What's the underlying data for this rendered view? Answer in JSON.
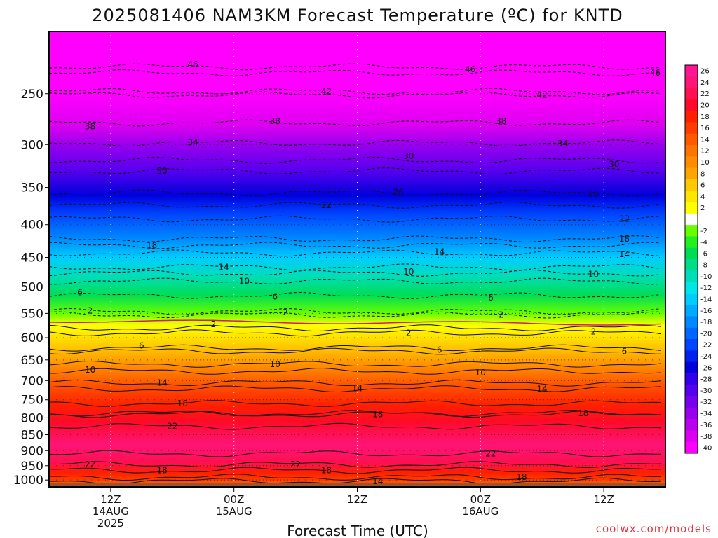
{
  "title": "2025081406 NAM3KM Forecast Temperature (ºC) for KNTD",
  "xlabel": "Forecast Time (UTC)",
  "credit": "coolwx.com/models",
  "chart_data": {
    "type": "heatmap",
    "title": "2025081406 NAM3KM Forecast Temperature (ºC) for KNTD",
    "xlabel": "Forecast Time (UTC)",
    "ylabel": "",
    "x_ticks": [
      {
        "hour": 6,
        "line1": "12Z",
        "line2": "14AUG",
        "line3": "2025"
      },
      {
        "hour": 18,
        "line1": "00Z",
        "line2": "15AUG",
        "line3": ""
      },
      {
        "hour": 30,
        "line1": "12Z",
        "line2": "",
        "line3": ""
      },
      {
        "hour": 42,
        "line1": "00Z",
        "line2": "16AUG",
        "line3": ""
      },
      {
        "hour": 54,
        "line1": "12Z",
        "line2": "",
        "line3": ""
      }
    ],
    "xlim": [
      0,
      60
    ],
    "y_ticks": [
      250,
      300,
      350,
      400,
      450,
      500,
      550,
      600,
      650,
      700,
      750,
      800,
      850,
      900,
      950,
      1000
    ],
    "ylim": [
      200,
      1025
    ],
    "y_log_scale": true,
    "surface_pressure": 1010,
    "temperature_profile": [
      {
        "p": 200,
        "t": -50
      },
      {
        "p": 230,
        "t": -46
      },
      {
        "p": 250,
        "t": -42
      },
      {
        "p": 280,
        "t": -38
      },
      {
        "p": 300,
        "t": -34
      },
      {
        "p": 330,
        "t": -30
      },
      {
        "p": 360,
        "t": -26
      },
      {
        "p": 385,
        "t": -22
      },
      {
        "p": 420,
        "t": -18
      },
      {
        "p": 450,
        "t": -14
      },
      {
        "p": 480,
        "t": -10
      },
      {
        "p": 515,
        "t": -6
      },
      {
        "p": 550,
        "t": -2
      },
      {
        "p": 575,
        "t": 2
      },
      {
        "p": 620,
        "t": 6
      },
      {
        "p": 665,
        "t": 10
      },
      {
        "p": 705,
        "t": 14
      },
      {
        "p": 765,
        "t": 18
      },
      {
        "p": 810,
        "t": 21
      },
      {
        "p": 880,
        "t": 24
      },
      {
        "p": 940,
        "t": 22
      },
      {
        "p": 975,
        "t": 18
      },
      {
        "p": 1000,
        "t": 16
      },
      {
        "p": 1010,
        "t": 14
      }
    ],
    "contour_labels": [
      {
        "value": "46",
        "hour": 14,
        "p": 225
      },
      {
        "value": "46",
        "hour": 41,
        "p": 229
      },
      {
        "value": "46",
        "hour": 59,
        "p": 232
      },
      {
        "value": "42",
        "hour": 27,
        "p": 248
      },
      {
        "value": "42",
        "hour": 48,
        "p": 251
      },
      {
        "value": "38",
        "hour": 4,
        "p": 281
      },
      {
        "value": "38",
        "hour": 22,
        "p": 276
      },
      {
        "value": "38",
        "hour": 44,
        "p": 276
      },
      {
        "value": "34",
        "hour": 14,
        "p": 298
      },
      {
        "value": "34",
        "hour": 50,
        "p": 299
      },
      {
        "value": "30",
        "hour": 11,
        "p": 330
      },
      {
        "value": "30",
        "hour": 35,
        "p": 313
      },
      {
        "value": "30",
        "hour": 55,
        "p": 322
      },
      {
        "value": "26",
        "hour": 34,
        "p": 356
      },
      {
        "value": "26",
        "hour": 53,
        "p": 358
      },
      {
        "value": "22",
        "hour": 27,
        "p": 373
      },
      {
        "value": "22",
        "hour": 56,
        "p": 392
      },
      {
        "value": "18",
        "hour": 10,
        "p": 431
      },
      {
        "value": "18",
        "hour": 56,
        "p": 421
      },
      {
        "value": "14",
        "hour": 17,
        "p": 466
      },
      {
        "value": "14",
        "hour": 38,
        "p": 441
      },
      {
        "value": "14",
        "hour": 56,
        "p": 445
      },
      {
        "value": "10",
        "hour": 19,
        "p": 490
      },
      {
        "value": "10",
        "hour": 35,
        "p": 474
      },
      {
        "value": "10",
        "hour": 53,
        "p": 478
      },
      {
        "value": "6",
        "hour": 3,
        "p": 510
      },
      {
        "value": "6",
        "hour": 22,
        "p": 518
      },
      {
        "value": "6",
        "hour": 43,
        "p": 520
      },
      {
        "value": "2",
        "hour": 4,
        "p": 545
      },
      {
        "value": "2",
        "hour": 23,
        "p": 548
      },
      {
        "value": "2",
        "hour": 44,
        "p": 553
      },
      {
        "value": "2",
        "hour": 16,
        "p": 572
      },
      {
        "value": "2",
        "hour": 35,
        "p": 590
      },
      {
        "value": "2",
        "hour": 53,
        "p": 587
      },
      {
        "value": "6",
        "hour": 9,
        "p": 618
      },
      {
        "value": "6",
        "hour": 38,
        "p": 627
      },
      {
        "value": "6",
        "hour": 56,
        "p": 630
      },
      {
        "value": "10",
        "hour": 4,
        "p": 674
      },
      {
        "value": "10",
        "hour": 22,
        "p": 660
      },
      {
        "value": "10",
        "hour": 42,
        "p": 680
      },
      {
        "value": "14",
        "hour": 11,
        "p": 706
      },
      {
        "value": "14",
        "hour": 30,
        "p": 720
      },
      {
        "value": "14",
        "hour": 48,
        "p": 722
      },
      {
        "value": "18",
        "hour": 13,
        "p": 760
      },
      {
        "value": "18",
        "hour": 32,
        "p": 790
      },
      {
        "value": "18",
        "hour": 52,
        "p": 787
      },
      {
        "value": "22",
        "hour": 12,
        "p": 825
      },
      {
        "value": "22",
        "hour": 43,
        "p": 910
      },
      {
        "value": "22",
        "hour": 4,
        "p": 946
      },
      {
        "value": "22",
        "hour": 24,
        "p": 946
      },
      {
        "value": "18",
        "hour": 11,
        "p": 966
      },
      {
        "value": "18",
        "hour": 27,
        "p": 966
      },
      {
        "value": "18",
        "hour": 46,
        "p": 990
      },
      {
        "value": "14",
        "hour": 32,
        "p": 1004
      }
    ],
    "colorbar": [
      {
        "label": "26",
        "color": "#ff1493"
      },
      {
        "label": "24",
        "color": "#ff1478"
      },
      {
        "label": "22",
        "color": "#ff1050"
      },
      {
        "label": "20",
        "color": "#ff0a28"
      },
      {
        "label": "18",
        "color": "#ff2000"
      },
      {
        "label": "16",
        "color": "#ff3c00"
      },
      {
        "label": "14",
        "color": "#ff5a00"
      },
      {
        "label": "12",
        "color": "#ff7300"
      },
      {
        "label": "10",
        "color": "#ff8c00"
      },
      {
        "label": "8",
        "color": "#ffa500"
      },
      {
        "label": "6",
        "color": "#ffc800"
      },
      {
        "label": "4",
        "color": "#ffe600"
      },
      {
        "label": "2",
        "color": "#ffff00"
      },
      {
        "label": "",
        "color": "#ffffff"
      },
      {
        "label": "-2",
        "color": "#66ff00"
      },
      {
        "label": "-4",
        "color": "#22ee22"
      },
      {
        "label": "-6",
        "color": "#00dd55"
      },
      {
        "label": "-8",
        "color": "#00dd88"
      },
      {
        "label": "-10",
        "color": "#00ddbb"
      },
      {
        "label": "-12",
        "color": "#00e5e5"
      },
      {
        "label": "-14",
        "color": "#00ccff"
      },
      {
        "label": "-16",
        "color": "#00aaff"
      },
      {
        "label": "-18",
        "color": "#0088ff"
      },
      {
        "label": "-20",
        "color": "#0066ff"
      },
      {
        "label": "-22",
        "color": "#0044ff"
      },
      {
        "label": "-24",
        "color": "#0022ee"
      },
      {
        "label": "-26",
        "color": "#0000dd"
      },
      {
        "label": "-28",
        "color": "#3300ee"
      },
      {
        "label": "-30",
        "color": "#5500ee"
      },
      {
        "label": "-32",
        "color": "#7700ee"
      },
      {
        "label": "-34",
        "color": "#9900ee"
      },
      {
        "label": "-36",
        "color": "#bb00ee"
      },
      {
        "label": "-38",
        "color": "#dd00f0"
      },
      {
        "label": "-40",
        "color": "#ff00ff"
      }
    ],
    "ground_color": "#a0522d",
    "grid": true,
    "legend_position": "right"
  }
}
